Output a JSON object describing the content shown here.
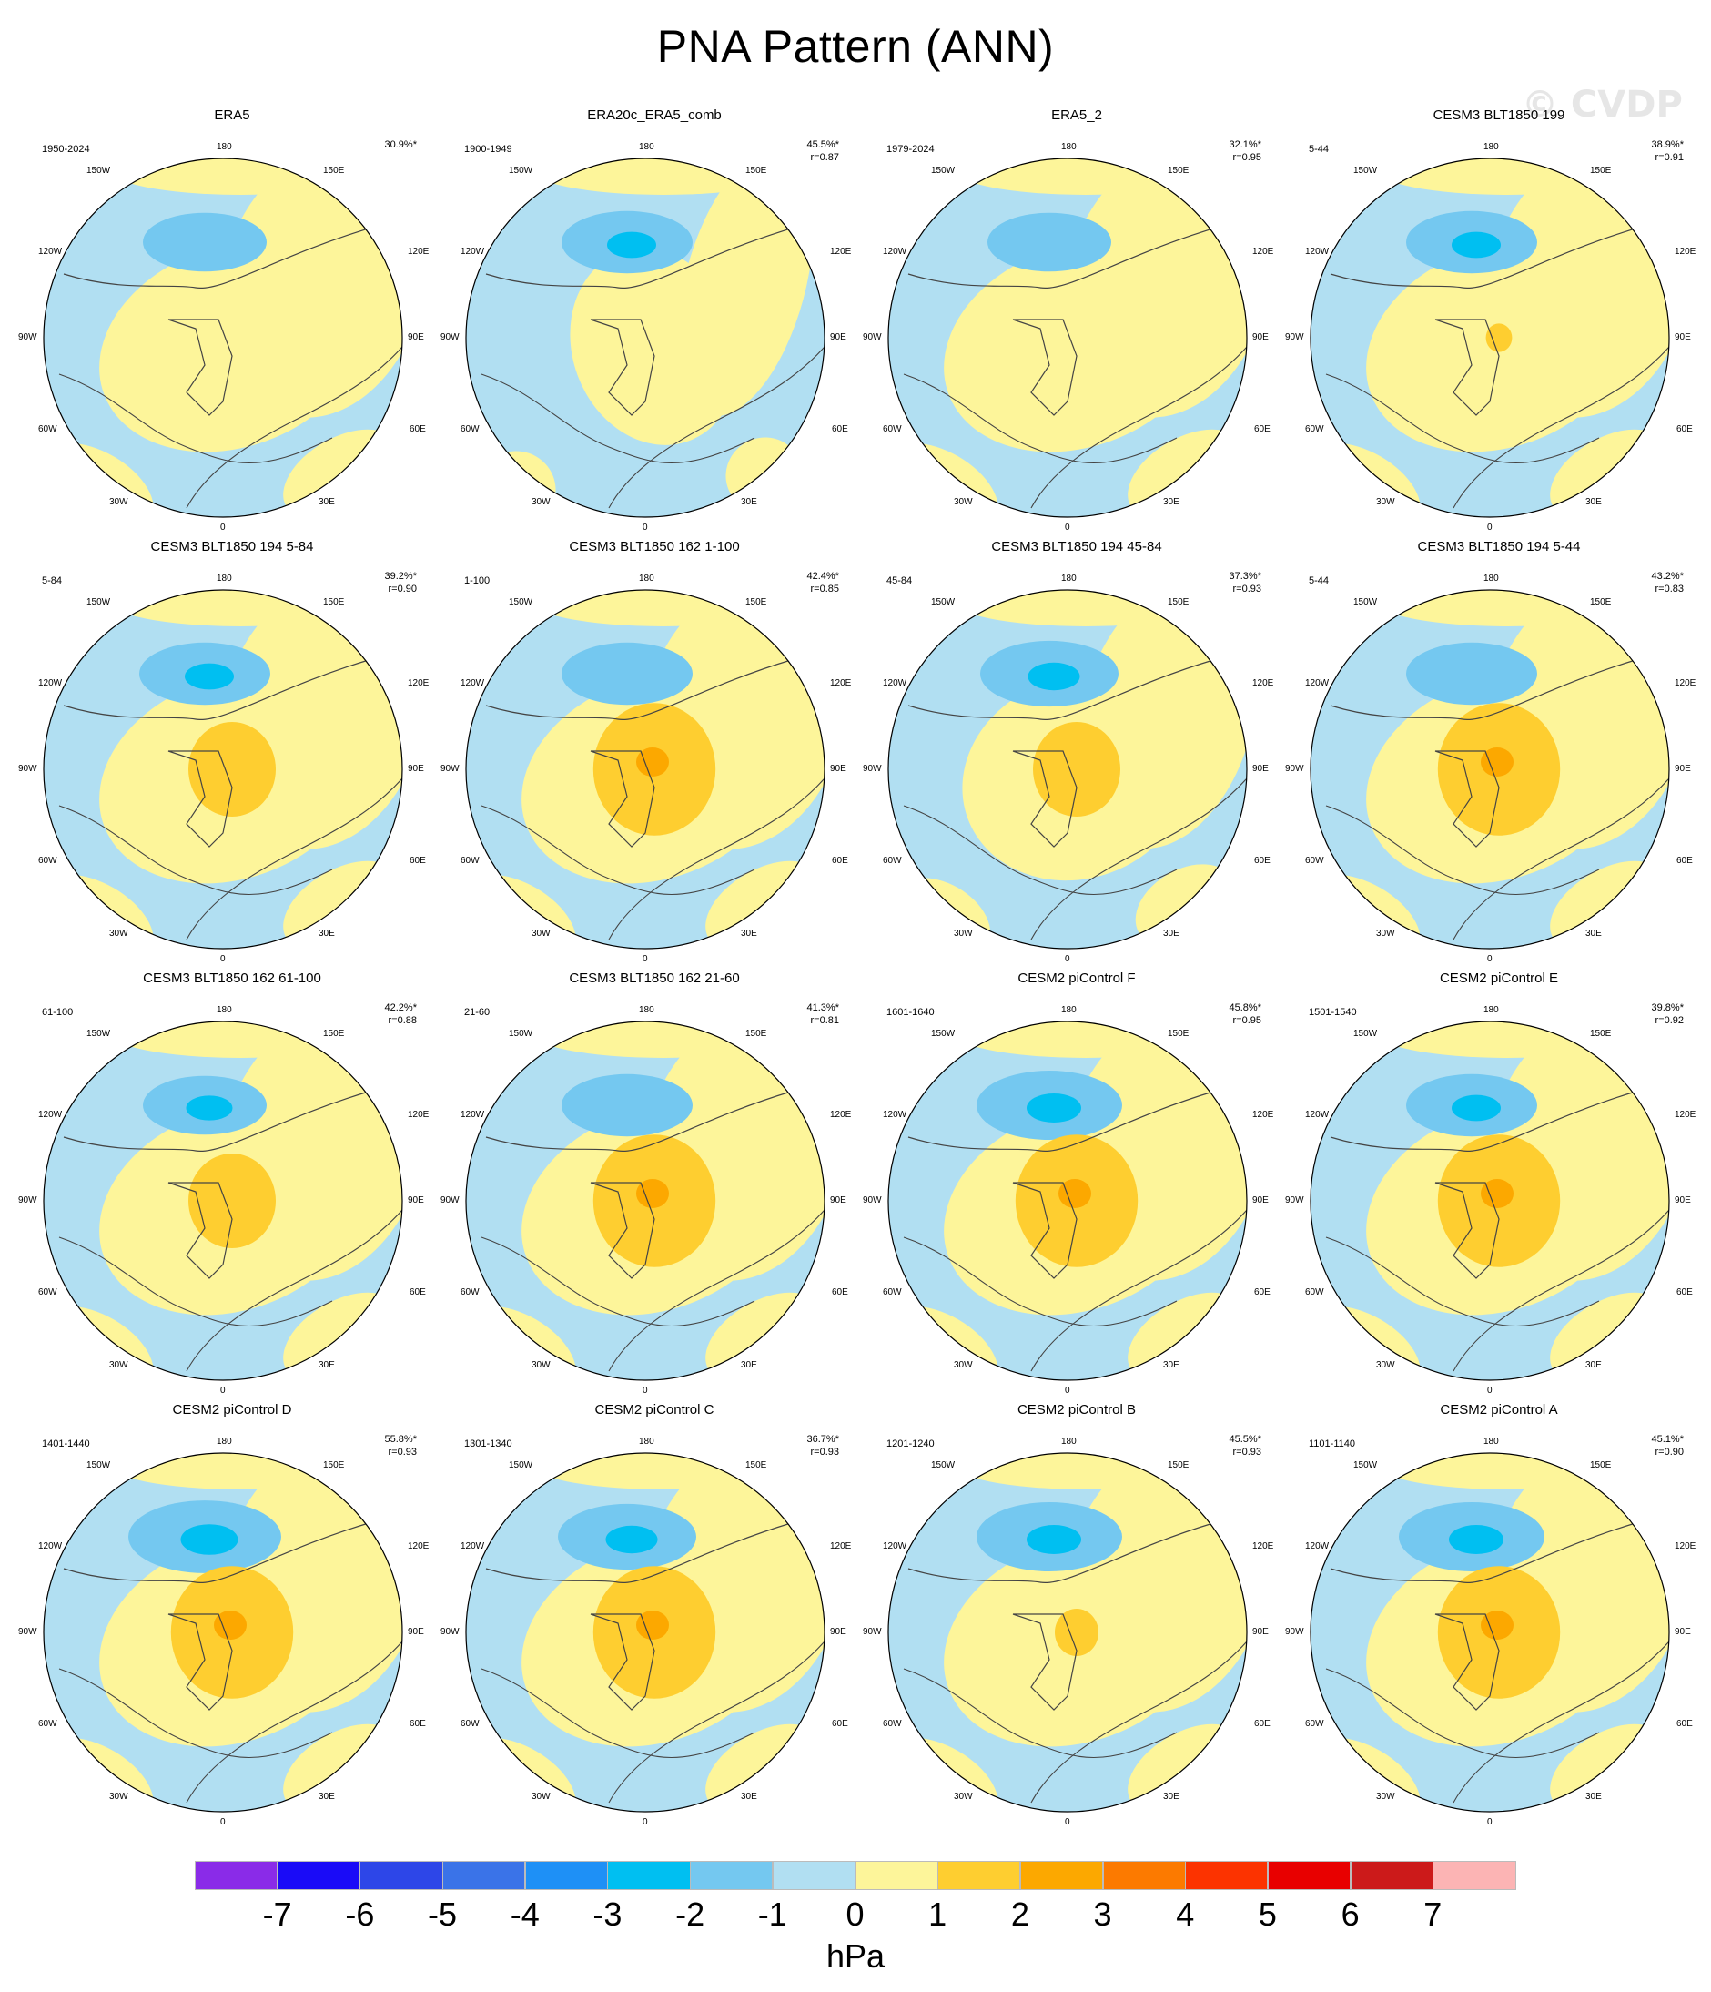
{
  "title": "PNA Pattern (ANN)",
  "watermark": "© CVDP",
  "axis_labels": {
    "top": "180",
    "top_left": "150W",
    "top_right": "150E",
    "upper_left": "120W",
    "upper_right": "120E",
    "left": "90W",
    "right": "90E",
    "lower_left": "60W",
    "lower_right": "60E",
    "bottom_left": "30W",
    "bottom_right": "30E",
    "bottom": "0"
  },
  "colors": {
    "ocean_neg1": "#b1dff2",
    "pos0_1": "#fdf59a",
    "neg1_2": "#74c8f0",
    "neg2_3": "#00bff1",
    "pos1_2": "#fece30",
    "pos2_3": "#fca800",
    "outline": "#444444"
  },
  "panels": [
    {
      "title": "ERA5",
      "years": "1950-2024",
      "pct": "30.9%*",
      "r": ""
    },
    {
      "title": "ERA20c_ERA5_comb",
      "years": "1900-1949",
      "pct": "45.5%*",
      "r": "r=0.87"
    },
    {
      "title": "ERA5_2",
      "years": "1979-2024",
      "pct": "32.1%*",
      "r": "r=0.95"
    },
    {
      "title": "CESM3 BLT1850 199",
      "years": "5-44",
      "pct": "38.9%*",
      "r": "r=0.91"
    },
    {
      "title": "CESM3 BLT1850 194 5-84",
      "years": "5-84",
      "pct": "39.2%*",
      "r": "r=0.90"
    },
    {
      "title": "CESM3 BLT1850 162 1-100",
      "years": "1-100",
      "pct": "42.4%*",
      "r": "r=0.85"
    },
    {
      "title": "CESM3 BLT1850 194 45-84",
      "years": "45-84",
      "pct": "37.3%*",
      "r": "r=0.93"
    },
    {
      "title": "CESM3 BLT1850 194 5-44",
      "years": "5-44",
      "pct": "43.2%*",
      "r": "r=0.83"
    },
    {
      "title": "CESM3 BLT1850 162 61-100",
      "years": "61-100",
      "pct": "42.2%*",
      "r": "r=0.88"
    },
    {
      "title": "CESM3 BLT1850 162 21-60",
      "years": "21-60",
      "pct": "41.3%*",
      "r": "r=0.81"
    },
    {
      "title": "CESM2 piControl F",
      "years": "1601-1640",
      "pct": "45.8%*",
      "r": "r=0.95"
    },
    {
      "title": "CESM2 piControl E",
      "years": "1501-1540",
      "pct": "39.8%*",
      "r": "r=0.92"
    },
    {
      "title": "CESM2 piControl D",
      "years": "1401-1440",
      "pct": "55.8%*",
      "r": "r=0.93"
    },
    {
      "title": "CESM2 piControl C",
      "years": "1301-1340",
      "pct": "36.7%*",
      "r": "r=0.93"
    },
    {
      "title": "CESM2 piControl B",
      "years": "1201-1240",
      "pct": "45.5%*",
      "r": "r=0.93"
    },
    {
      "title": "CESM2 piControl A",
      "years": "1101-1140",
      "pct": "45.1%*",
      "r": "r=0.90"
    }
  ],
  "colorbar": {
    "units": "hPa",
    "ticks": [
      "-7",
      "-6",
      "-5",
      "-4",
      "-3",
      "-2",
      "-1",
      "0",
      "1",
      "2",
      "3",
      "4",
      "5",
      "6",
      "7"
    ],
    "colors": [
      "#8a2be8",
      "#1a0bf7",
      "#2d46e8",
      "#3a73e8",
      "#1e90f6",
      "#00bff1",
      "#74c8f0",
      "#b1dff2",
      "#fdf59a",
      "#fece30",
      "#fca800",
      "#fc7a00",
      "#fc3300",
      "#e80000",
      "#cc1a1a",
      "#fcb4b4"
    ]
  }
}
